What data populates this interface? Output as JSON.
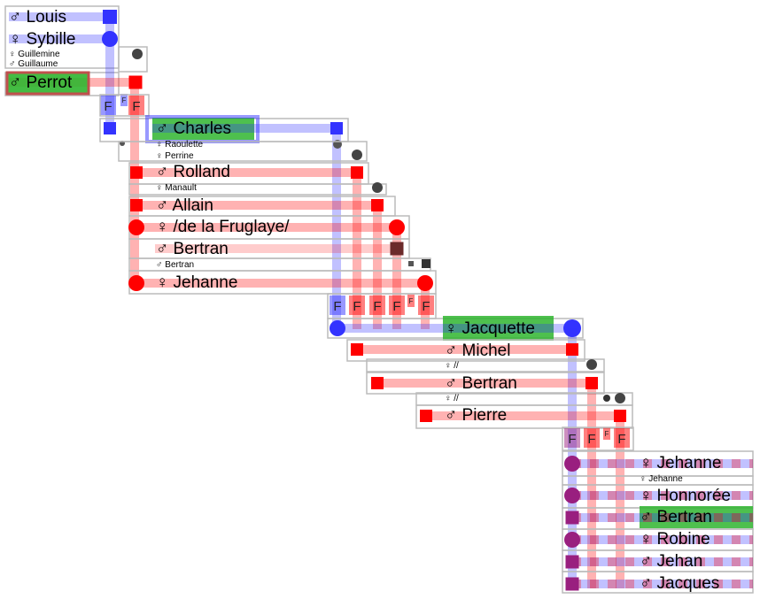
{
  "symbols": {
    "male": "♂",
    "female": "♀"
  },
  "colors": {
    "male": "#ff0000",
    "female": "#3333ff",
    "highlight": "#2fb52f",
    "childmix": "#991f7f"
  },
  "family_label": "F",
  "family_label_small": "F",
  "people": [
    {
      "id": "louis",
      "sex": "male",
      "name": "Louis"
    },
    {
      "id": "sybille",
      "sex": "female",
      "name": "Sybille"
    },
    {
      "id": "guillemine",
      "sex": "female",
      "name": "Guillemine"
    },
    {
      "id": "guillaume",
      "sex": "male",
      "name": "Guillaume"
    },
    {
      "id": "perrot",
      "sex": "male",
      "name": "Perrot",
      "highlight": true
    },
    {
      "id": "charles",
      "sex": "male",
      "name": "Charles",
      "highlight": true
    },
    {
      "id": "raoulette",
      "sex": "female",
      "name": "Raoulette"
    },
    {
      "id": "perrine",
      "sex": "female",
      "name": "Perrine"
    },
    {
      "id": "rolland",
      "sex": "male",
      "name": "Rolland"
    },
    {
      "id": "manault",
      "sex": "female",
      "name": "Manault"
    },
    {
      "id": "allain",
      "sex": "male",
      "name": "Allain"
    },
    {
      "id": "fruglaye",
      "sex": "female",
      "name": "/de la Fruglaye/"
    },
    {
      "id": "bertran1",
      "sex": "male",
      "name": "Bertran"
    },
    {
      "id": "bertran2",
      "sex": "male",
      "name": "Bertran"
    },
    {
      "id": "jehanne1",
      "sex": "female",
      "name": "Jehanne"
    },
    {
      "id": "jacquette",
      "sex": "female",
      "name": "Jacquette",
      "highlight": true
    },
    {
      "id": "michel",
      "sex": "male",
      "name": "Michel"
    },
    {
      "id": "unk1",
      "sex": "female",
      "name": "//"
    },
    {
      "id": "bertran3",
      "sex": "male",
      "name": "Bertran"
    },
    {
      "id": "unk2",
      "sex": "female",
      "name": "//"
    },
    {
      "id": "pierre",
      "sex": "male",
      "name": "Pierre"
    },
    {
      "id": "jehanne2",
      "sex": "female",
      "name": "Jehanne"
    },
    {
      "id": "jehanne3",
      "sex": "female",
      "name": "Jehanne"
    },
    {
      "id": "honnoree",
      "sex": "female",
      "name": "Honnorée"
    },
    {
      "id": "bertran4",
      "sex": "male",
      "name": "Bertran",
      "highlight": true
    },
    {
      "id": "robine",
      "sex": "female",
      "name": "Robine"
    },
    {
      "id": "jehan",
      "sex": "male",
      "name": "Jehan"
    },
    {
      "id": "jacques",
      "sex": "male",
      "name": "Jacques"
    }
  ]
}
